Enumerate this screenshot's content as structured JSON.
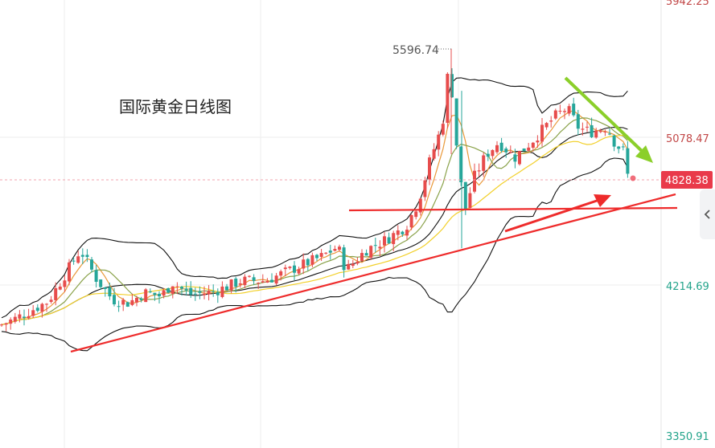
{
  "chart_data": {
    "type": "candlestick",
    "title": "国际黄金日线图",
    "y_axis": {
      "ticks": [
        3350.91,
        4214.69,
        5078.47
      ],
      "top_label_partial": "5942.25"
    },
    "last_price": 4828.38,
    "peak_label": "5596.74",
    "colors": {
      "up": "#e74c4c",
      "down": "#26a69a",
      "bollinger": "#111111",
      "ma_fast": "#e9993a",
      "ma_mid": "#8aa24a",
      "ma_slow": "#f2d02b",
      "trend_red": "#ee2b2b",
      "trend_green": "#8bcf2a",
      "price_tag_bg": "#e93a4a"
    }
  }
}
